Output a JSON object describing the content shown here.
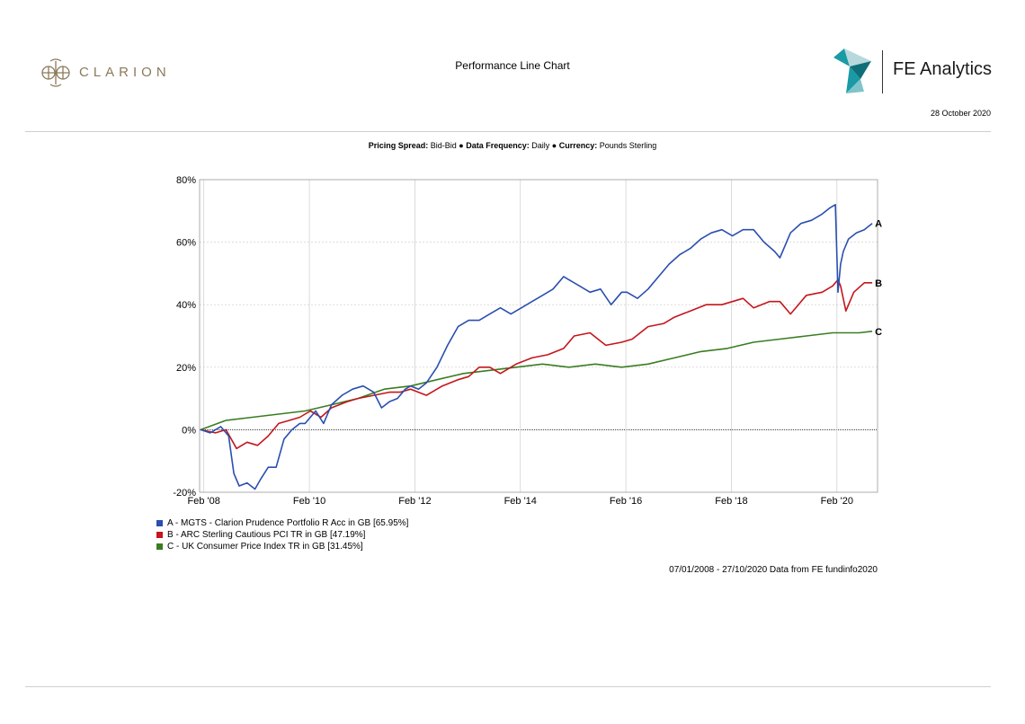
{
  "header": {
    "brand_left": "CLARION",
    "title": "Performance Line Chart",
    "brand_right": "FE Analytics",
    "date": "28 October 2020"
  },
  "settings": {
    "pricing_label": "Pricing Spread:",
    "pricing_value": "Bid-Bid",
    "frequency_label": "Data Frequency:",
    "frequency_value": "Daily",
    "currency_label": "Currency:",
    "currency_value": "Pounds Sterling"
  },
  "footer": {
    "source": "07/01/2008 - 27/10/2020 Data from FE fundinfo2020"
  },
  "chart_data": {
    "type": "line",
    "ylim": [
      -20,
      80
    ],
    "yticks": [
      -20,
      0,
      20,
      40,
      60,
      80
    ],
    "ytick_labels": [
      "-20%",
      "0%",
      "20%",
      "40%",
      "60%",
      "80%"
    ],
    "xlim": [
      2008.0,
      2020.85
    ],
    "xticks": [
      2008.08,
      2010.08,
      2012.08,
      2014.08,
      2016.08,
      2018.08,
      2020.08
    ],
    "xtick_labels": [
      "Feb '08",
      "Feb '10",
      "Feb '12",
      "Feb '14",
      "Feb '16",
      "Feb '18",
      "Feb '20"
    ],
    "grid": true,
    "legend_position": "bottom-left",
    "series": [
      {
        "name": "A - MGTS - Clarion Prudence Portfolio R Acc in GB [65.95%]",
        "end_label": "A",
        "color": "#2a4fb0",
        "x": [
          2008.02,
          2008.2,
          2008.4,
          2008.55,
          2008.65,
          2008.75,
          2008.9,
          2009.05,
          2009.15,
          2009.3,
          2009.45,
          2009.6,
          2009.75,
          2009.9,
          2010.0,
          2010.2,
          2010.35,
          2010.5,
          2010.7,
          2010.9,
          2011.1,
          2011.3,
          2011.45,
          2011.6,
          2011.75,
          2011.9,
          2012.0,
          2012.15,
          2012.3,
          2012.5,
          2012.7,
          2012.9,
          2013.1,
          2013.3,
          2013.5,
          2013.7,
          2013.9,
          2014.1,
          2014.3,
          2014.5,
          2014.7,
          2014.9,
          2015.0,
          2015.2,
          2015.4,
          2015.6,
          2015.8,
          2016.0,
          2016.1,
          2016.3,
          2016.5,
          2016.7,
          2016.9,
          2017.1,
          2017.3,
          2017.5,
          2017.7,
          2017.9,
          2018.0,
          2018.1,
          2018.3,
          2018.5,
          2018.7,
          2018.9,
          2019.0,
          2019.2,
          2019.4,
          2019.6,
          2019.8,
          2019.95,
          2020.05,
          2020.1,
          2020.15,
          2020.2,
          2020.3,
          2020.45,
          2020.6,
          2020.75
        ],
        "y": [
          0,
          -1,
          1,
          -2,
          -14,
          -18,
          -17,
          -19,
          -16,
          -12,
          -12,
          -3,
          0,
          2,
          2,
          6,
          2,
          8,
          11,
          13,
          14,
          12,
          7,
          9,
          10,
          13,
          14,
          13,
          15,
          20,
          27,
          33,
          35,
          35,
          37,
          39,
          37,
          39,
          41,
          43,
          45,
          49,
          48,
          46,
          44,
          45,
          40,
          44,
          44,
          42,
          45,
          49,
          53,
          56,
          58,
          61,
          63,
          64,
          63,
          62,
          64,
          64,
          60,
          57,
          55,
          63,
          66,
          67,
          69,
          71,
          72,
          44,
          53,
          57,
          61,
          63,
          64,
          66
        ]
      },
      {
        "name": "B - ARC Sterling Cautious PCI TR in GB [47.19%]",
        "end_label": "B",
        "color": "#c4161c",
        "x": [
          2008.02,
          2008.3,
          2008.5,
          2008.7,
          2008.9,
          2009.1,
          2009.3,
          2009.5,
          2009.7,
          2009.9,
          2010.1,
          2010.3,
          2010.5,
          2010.8,
          2011.0,
          2011.3,
          2011.6,
          2011.8,
          2012.0,
          2012.3,
          2012.6,
          2012.9,
          2013.1,
          2013.3,
          2013.5,
          2013.7,
          2014.0,
          2014.3,
          2014.6,
          2014.9,
          2015.1,
          2015.4,
          2015.7,
          2016.0,
          2016.2,
          2016.5,
          2016.8,
          2017.0,
          2017.3,
          2017.6,
          2017.9,
          2018.1,
          2018.3,
          2018.5,
          2018.8,
          2019.0,
          2019.2,
          2019.5,
          2019.8,
          2020.0,
          2020.1,
          2020.15,
          2020.25,
          2020.4,
          2020.6,
          2020.75
        ],
        "y": [
          0,
          -1,
          0,
          -6,
          -4,
          -5,
          -2,
          2,
          3,
          4,
          6,
          4,
          7,
          9,
          10,
          11,
          12,
          12,
          13,
          11,
          14,
          16,
          17,
          20,
          20,
          18,
          21,
          23,
          24,
          26,
          30,
          31,
          27,
          28,
          29,
          33,
          34,
          36,
          38,
          40,
          40,
          41,
          42,
          39,
          41,
          41,
          37,
          43,
          44,
          46,
          48,
          46,
          38,
          44,
          47,
          47
        ]
      },
      {
        "name": "C - UK Consumer Price Index TR in GB [31.45%]",
        "end_label": "C",
        "color": "#3a7d22",
        "x": [
          2008.02,
          2008.5,
          2009.0,
          2009.5,
          2010.0,
          2010.5,
          2011.0,
          2011.5,
          2012.0,
          2012.5,
          2013.0,
          2013.5,
          2014.0,
          2014.5,
          2015.0,
          2015.5,
          2016.0,
          2016.5,
          2017.0,
          2017.5,
          2018.0,
          2018.5,
          2019.0,
          2019.5,
          2020.0,
          2020.5,
          2020.75
        ],
        "y": [
          0,
          3,
          4,
          5,
          6,
          8,
          10,
          13,
          14,
          16,
          18,
          19,
          20,
          21,
          20,
          21,
          20,
          21,
          23,
          25,
          26,
          28,
          29,
          30,
          31,
          31,
          31.5
        ]
      }
    ]
  }
}
